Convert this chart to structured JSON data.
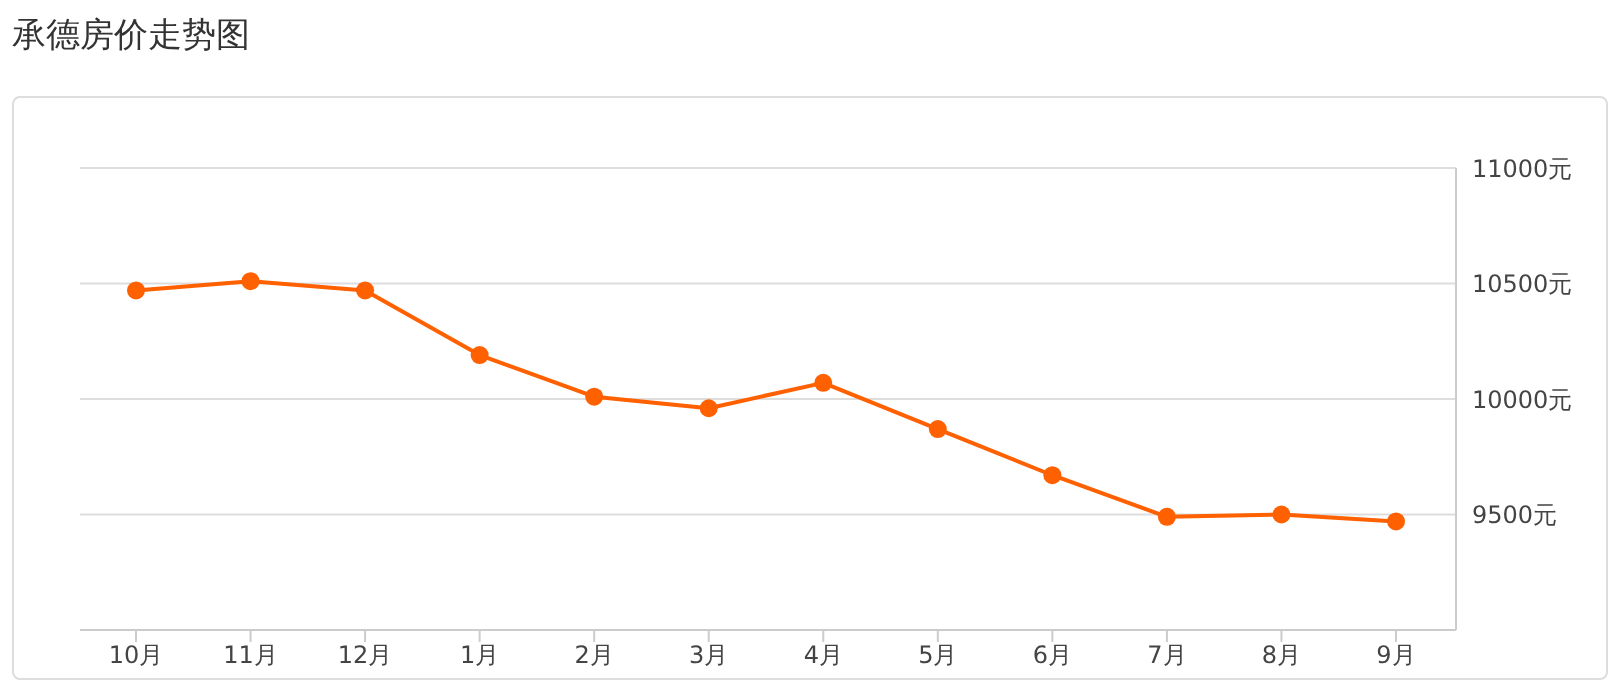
{
  "chart_data": {
    "type": "line",
    "title": "承德房价走势图",
    "categories": [
      "10月",
      "11月",
      "12月",
      "1月",
      "2月",
      "3月",
      "4月",
      "5月",
      "6月",
      "7月",
      "8月",
      "9月"
    ],
    "series": [
      {
        "color": "#ff6000",
        "values": [
          10470,
          10510,
          10470,
          10190,
          10010,
          9960,
          10070,
          9870,
          9670,
          9490,
          9500,
          9470
        ]
      }
    ],
    "ylim": [
      9000,
      11000
    ],
    "yticks": [
      {
        "value": 9000,
        "label": null
      },
      {
        "value": 9500,
        "label": "9500元"
      },
      {
        "value": 10000,
        "label": "10000元"
      },
      {
        "value": 10500,
        "label": "10500元"
      },
      {
        "value": 11000,
        "label": "11000元"
      }
    ],
    "grid": "y",
    "marker": "circle",
    "line_style": "solid"
  }
}
